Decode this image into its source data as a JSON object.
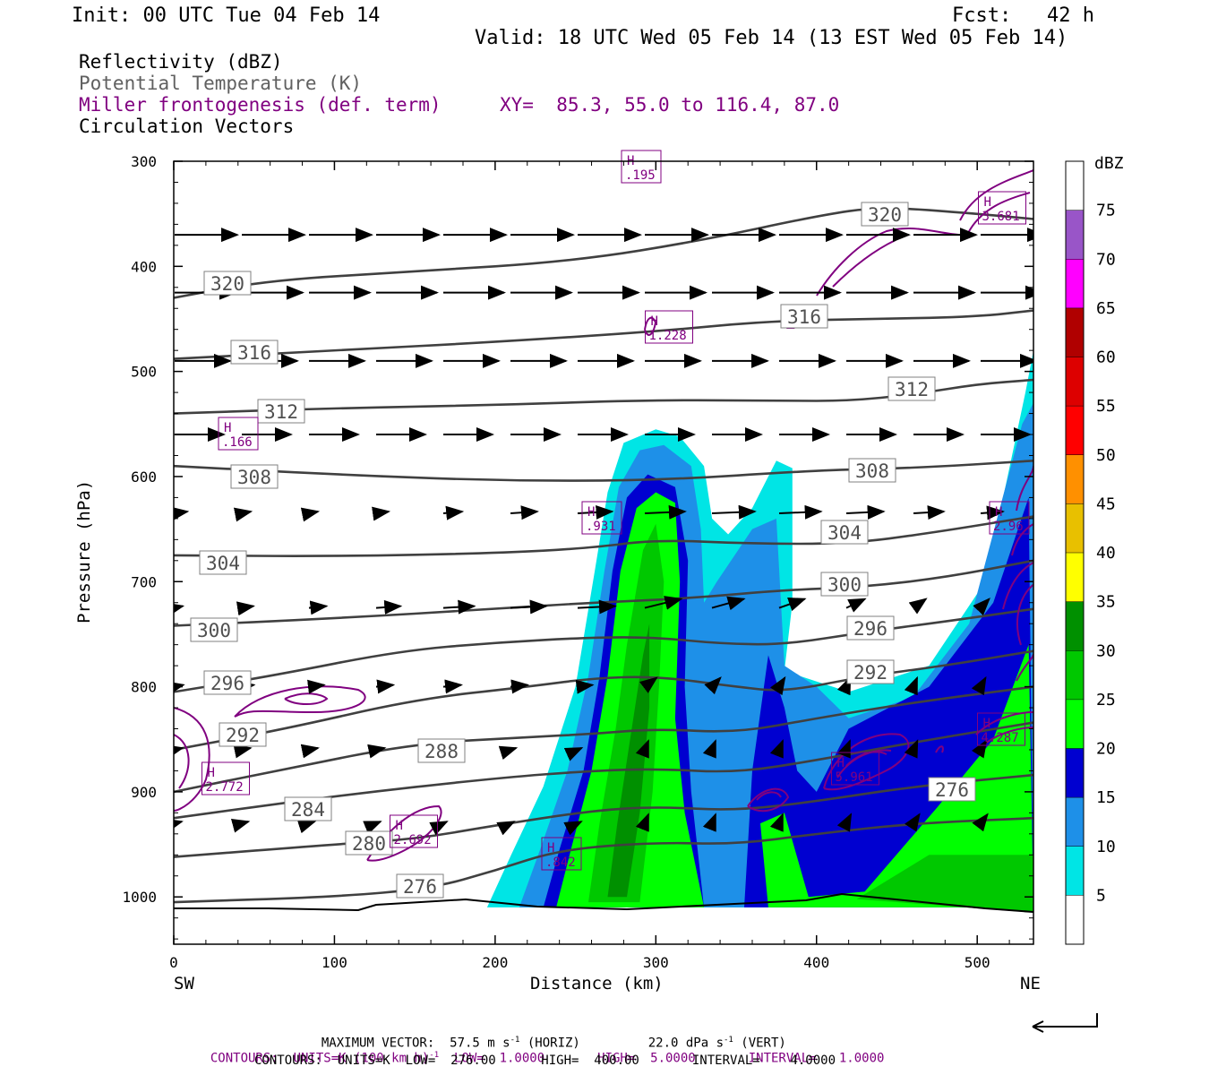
{
  "header": {
    "init": "Init: 00 UTC Tue 04 Feb 14",
    "fcst": "Fcst:   42 h",
    "valid": "Valid: 18 UTC Wed 05 Feb 14 (13 EST Wed 05 Feb 14)"
  },
  "fields": [
    {
      "label": "Reflectivity (dBZ)",
      "color": "#000000"
    },
    {
      "label": "Potential Temperature (K)",
      "color": "#606060"
    },
    {
      "label": "Miller frontogenesis (def. term)",
      "color": "#800080"
    },
    {
      "label": "Circulation Vectors",
      "color": "#000000"
    }
  ],
  "xy_label": "XY=  85.3, 55.0 to 116.4, 87.0",
  "axes": {
    "y_label": "Pressure (hPa)",
    "x_label": "Distance (km)",
    "left_end": "SW",
    "right_end": "NE"
  },
  "colorbar": {
    "unit": "dBZ",
    "levels": [
      "5",
      "10",
      "15",
      "20",
      "25",
      "30",
      "35",
      "40",
      "45",
      "50",
      "55",
      "60",
      "65",
      "70",
      "75"
    ],
    "colors": [
      "#ffffff",
      "#00e5e5",
      "#1e90e8",
      "#0000d0",
      "#00ff00",
      "#00c800",
      "#009000",
      "#ffff00",
      "#e8c000",
      "#ff9000",
      "#ff0000",
      "#dd0000",
      "#b00000",
      "#ff00ff",
      "#9955c8",
      "#ffffff"
    ]
  },
  "footer": {
    "vector_line1": "MAXIMUM VECTOR:  57.5 m s",
    "vector_sup1": "-1",
    "vector_line2": " (HORIZ)         22.0 dPa s",
    "vector_sup2": "-1",
    "vector_line3": " (VERT)",
    "contours1a": "CONTOURS:  UNITS=K (100 km h)",
    "contours1_sup": "-1",
    "contours1b": "  LOW=  1.0000       HIGH=  5.0000       INTERVAL=   1.0000",
    "contours2": "CONTOURS:  UNITS=K  LOW=  276.00      HIGH=  400.00       INTERVAL=    4.0000"
  },
  "chart_data": {
    "type": "contour",
    "x_range": [
      0,
      535
    ],
    "x_ticks": [
      0,
      100,
      200,
      300,
      400,
      500
    ],
    "y_range": [
      1045,
      300
    ],
    "y_ticks": [
      300,
      400,
      500,
      600,
      700,
      800,
      900,
      1000
    ],
    "theta_contours": [
      {
        "label": "320",
        "points": [
          [
            0,
            430
          ],
          [
            60,
            413
          ],
          [
            150,
            405
          ],
          [
            250,
            395
          ],
          [
            330,
            375
          ],
          [
            400,
            352
          ],
          [
            440,
            343
          ],
          [
            500,
            350
          ],
          [
            535,
            355
          ]
        ]
      },
      {
        "label": "316",
        "points": [
          [
            0,
            488
          ],
          [
            100,
            480
          ],
          [
            200,
            472
          ],
          [
            300,
            462
          ],
          [
            370,
            452
          ],
          [
            440,
            450
          ],
          [
            500,
            448
          ],
          [
            535,
            442
          ]
        ]
      },
      {
        "label": "312",
        "points": [
          [
            0,
            540
          ],
          [
            100,
            535
          ],
          [
            200,
            532
          ],
          [
            300,
            527
          ],
          [
            380,
            528
          ],
          [
            420,
            528
          ],
          [
            460,
            522
          ],
          [
            500,
            512
          ],
          [
            535,
            508
          ]
        ]
      },
      {
        "label": "308",
        "points": [
          [
            0,
            590
          ],
          [
            100,
            598
          ],
          [
            200,
            604
          ],
          [
            300,
            604
          ],
          [
            400,
            594
          ],
          [
            460,
            592
          ],
          [
            535,
            585
          ]
        ]
      },
      {
        "label": "304",
        "points": [
          [
            0,
            675
          ],
          [
            100,
            676
          ],
          [
            200,
            673
          ],
          [
            260,
            668
          ],
          [
            300,
            660
          ],
          [
            360,
            664
          ],
          [
            420,
            664
          ],
          [
            470,
            654
          ],
          [
            535,
            638
          ]
        ]
      },
      {
        "label": "300",
        "points": [
          [
            0,
            742
          ],
          [
            100,
            735
          ],
          [
            200,
            726
          ],
          [
            260,
            720
          ],
          [
            320,
            716
          ],
          [
            380,
            708
          ],
          [
            430,
            705
          ],
          [
            480,
            696
          ],
          [
            535,
            680
          ]
        ]
      },
      {
        "label": "296",
        "points": [
          [
            0,
            805
          ],
          [
            60,
            790
          ],
          [
            140,
            766
          ],
          [
            200,
            758
          ],
          [
            260,
            753
          ],
          [
            300,
            753
          ],
          [
            340,
            759
          ],
          [
            380,
            760
          ],
          [
            430,
            748
          ],
          [
            480,
            738
          ],
          [
            535,
            726
          ]
        ]
      },
      {
        "label": "292",
        "points": [
          [
            0,
            860
          ],
          [
            70,
            840
          ],
          [
            150,
            812
          ],
          [
            220,
            800
          ],
          [
            260,
            792
          ],
          [
            300,
            790
          ],
          [
            350,
            800
          ],
          [
            380,
            805
          ],
          [
            430,
            790
          ],
          [
            480,
            780
          ],
          [
            535,
            766
          ]
        ]
      },
      {
        "label": "288",
        "points": [
          [
            0,
            900
          ],
          [
            70,
            878
          ],
          [
            150,
            854
          ],
          [
            220,
            848
          ],
          [
            260,
            845
          ],
          [
            300,
            840
          ],
          [
            350,
            844
          ],
          [
            400,
            830
          ],
          [
            460,
            815
          ],
          [
            535,
            800
          ]
        ]
      },
      {
        "label": "284",
        "points": [
          [
            0,
            925
          ],
          [
            100,
            904
          ],
          [
            200,
            887
          ],
          [
            260,
            880
          ],
          [
            300,
            878
          ],
          [
            350,
            882
          ],
          [
            400,
            870
          ],
          [
            460,
            853
          ],
          [
            535,
            834
          ]
        ]
      },
      {
        "label": "280",
        "points": [
          [
            0,
            962
          ],
          [
            100,
            950
          ],
          [
            150,
            945
          ],
          [
            200,
            932
          ],
          [
            260,
            918
          ],
          [
            300,
            914
          ],
          [
            350,
            918
          ],
          [
            400,
            909
          ],
          [
            460,
            895
          ],
          [
            535,
            884
          ]
        ]
      },
      {
        "label": "276",
        "points": [
          [
            0,
            1005
          ],
          [
            100,
            1000
          ],
          [
            160,
            992
          ],
          [
            200,
            975
          ],
          [
            240,
            955
          ],
          [
            300,
            948
          ],
          [
            350,
            950
          ],
          [
            400,
            940
          ],
          [
            460,
            930
          ],
          [
            535,
            925
          ]
        ]
      }
    ],
    "reflectivity_regions": [
      {
        "dbz": 5,
        "points": [
          [
            195,
            1010
          ],
          [
            210,
            960
          ],
          [
            230,
            895
          ],
          [
            250,
            800
          ],
          [
            262,
            690
          ],
          [
            270,
            615
          ],
          [
            280,
            568
          ],
          [
            300,
            555
          ],
          [
            315,
            562
          ],
          [
            330,
            590
          ],
          [
            335,
            640
          ],
          [
            345,
            655
          ],
          [
            360,
            630
          ],
          [
            375,
            585
          ],
          [
            385,
            592
          ],
          [
            385,
            720
          ],
          [
            380,
            785
          ],
          [
            420,
            805
          ],
          [
            470,
            780
          ],
          [
            505,
            700
          ],
          [
            530,
            520
          ],
          [
            535,
            480
          ],
          [
            535,
            1010
          ]
        ]
      },
      {
        "dbz": 10,
        "points": [
          [
            215,
            1010
          ],
          [
            228,
            955
          ],
          [
            245,
            880
          ],
          [
            258,
            790
          ],
          [
            268,
            690
          ],
          [
            277,
            610
          ],
          [
            290,
            575
          ],
          [
            305,
            570
          ],
          [
            322,
            590
          ],
          [
            328,
            650
          ],
          [
            330,
            720
          ],
          [
            338,
            700
          ],
          [
            360,
            650
          ],
          [
            375,
            640
          ],
          [
            380,
            780
          ],
          [
            400,
            800
          ],
          [
            420,
            830
          ],
          [
            460,
            810
          ],
          [
            495,
            740
          ],
          [
            528,
            550
          ],
          [
            535,
            530
          ],
          [
            535,
            1010
          ]
        ]
      },
      {
        "dbz": 15,
        "points": [
          [
            230,
            1010
          ],
          [
            240,
            955
          ],
          [
            255,
            880
          ],
          [
            265,
            790
          ],
          [
            273,
            690
          ],
          [
            282,
            620
          ],
          [
            295,
            598
          ],
          [
            312,
            610
          ],
          [
            320,
            680
          ],
          [
            318,
            800
          ],
          [
            322,
            900
          ],
          [
            330,
            1010
          ],
          [
            355,
            1010
          ],
          [
            360,
            880
          ],
          [
            370,
            770
          ],
          [
            380,
            820
          ],
          [
            388,
            880
          ],
          [
            400,
            900
          ],
          [
            420,
            840
          ],
          [
            470,
            800
          ],
          [
            510,
            720
          ],
          [
            532,
            620
          ],
          [
            535,
            1010
          ]
        ]
      },
      {
        "dbz": 20,
        "points": [
          [
            238,
            1010
          ],
          [
            248,
            950
          ],
          [
            260,
            880
          ],
          [
            270,
            790
          ],
          [
            278,
            690
          ],
          [
            288,
            630
          ],
          [
            300,
            615
          ],
          [
            312,
            625
          ],
          [
            315,
            700
          ],
          [
            312,
            830
          ],
          [
            318,
            920
          ],
          [
            330,
            1010
          ],
          [
            370,
            1010
          ],
          [
            365,
            930
          ],
          [
            380,
            920
          ],
          [
            395,
            1000
          ],
          [
            430,
            995
          ],
          [
            475,
            915
          ],
          [
            510,
            850
          ],
          [
            532,
            760
          ],
          [
            535,
            1010
          ]
        ]
      },
      {
        "dbz": 25,
        "points": [
          [
            258,
            1005
          ],
          [
            265,
            930
          ],
          [
            275,
            840
          ],
          [
            282,
            760
          ],
          [
            292,
            670
          ],
          [
            300,
            645
          ],
          [
            305,
            700
          ],
          [
            302,
            800
          ],
          [
            298,
            900
          ],
          [
            290,
            1005
          ]
        ]
      },
      {
        "dbz": 30,
        "points": [
          [
            270,
            1000
          ],
          [
            276,
            930
          ],
          [
            284,
            850
          ],
          [
            292,
            770
          ],
          [
            296,
            740
          ],
          [
            296,
            820
          ],
          [
            290,
            920
          ],
          [
            282,
            1000
          ]
        ]
      },
      {
        "dbz": 25,
        "points": [
          [
            425,
            1002
          ],
          [
            470,
            960
          ],
          [
            510,
            960
          ],
          [
            535,
            960
          ],
          [
            535,
            1015
          ]
        ]
      }
    ],
    "frontogenesis_maxima": [
      "H .195",
      "H 3.681",
      "H 1.228",
      "H .166",
      "H .931",
      "H 2.96",
      "H 4.287",
      "H 5.961",
      "H 2.772",
      "H 2.692",
      "H .842"
    ],
    "vector_rows_hpa": [
      370,
      425,
      490,
      560,
      635,
      725,
      800,
      860,
      930
    ]
  }
}
